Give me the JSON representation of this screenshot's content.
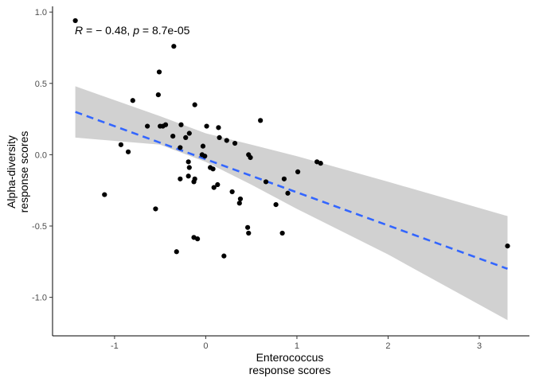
{
  "chart_data": {
    "type": "scatter",
    "title": "",
    "xlabel_lines": [
      "Enterococcus",
      "response scores"
    ],
    "ylabel_lines": [
      "Alpha-diversity",
      "response scores"
    ],
    "xlim": [
      -1.68,
      3.55
    ],
    "ylim": [
      -1.27,
      1.04
    ],
    "xticks": [
      -1,
      0,
      1,
      2,
      3
    ],
    "xtick_labels": [
      "-1",
      "0",
      "1",
      "2",
      "3"
    ],
    "yticks": [
      1.0,
      0.5,
      0.0,
      -0.5,
      -1.0
    ],
    "ytick_labels": [
      "1.0",
      "0.5",
      "0.0",
      "-0.5",
      "-1.0"
    ],
    "grid": false,
    "annotation": {
      "r_symbol": "R",
      "r_text": " = − 0.48, ",
      "p_symbol": "p",
      "p_text": " = 8.7e-05"
    },
    "points": [
      {
        "x": -1.43,
        "y": 0.94
      },
      {
        "x": -0.35,
        "y": 0.76
      },
      {
        "x": -0.51,
        "y": 0.58
      },
      {
        "x": -0.52,
        "y": 0.42
      },
      {
        "x": -0.8,
        "y": 0.38
      },
      {
        "x": -0.12,
        "y": 0.35
      },
      {
        "x": 0.6,
        "y": 0.24
      },
      {
        "x": -0.44,
        "y": 0.21
      },
      {
        "x": -0.47,
        "y": 0.2
      },
      {
        "x": -0.5,
        "y": 0.2
      },
      {
        "x": -0.64,
        "y": 0.2
      },
      {
        "x": -0.27,
        "y": 0.21
      },
      {
        "x": 0.01,
        "y": 0.2
      },
      {
        "x": 0.14,
        "y": 0.19
      },
      {
        "x": -0.18,
        "y": 0.15
      },
      {
        "x": -0.36,
        "y": 0.13
      },
      {
        "x": 0.15,
        "y": 0.12
      },
      {
        "x": 0.23,
        "y": 0.1
      },
      {
        "x": -0.22,
        "y": 0.12
      },
      {
        "x": 0.32,
        "y": 0.08
      },
      {
        "x": -0.93,
        "y": 0.07
      },
      {
        "x": -0.03,
        "y": 0.06
      },
      {
        "x": -0.28,
        "y": 0.05
      },
      {
        "x": -0.85,
        "y": 0.02
      },
      {
        "x": -0.04,
        "y": 0.0
      },
      {
        "x": -0.01,
        "y": -0.01
      },
      {
        "x": 0.47,
        "y": 0.0
      },
      {
        "x": 0.49,
        "y": -0.02
      },
      {
        "x": -0.19,
        "y": -0.05
      },
      {
        "x": 1.22,
        "y": -0.05
      },
      {
        "x": 1.26,
        "y": -0.06
      },
      {
        "x": 0.05,
        "y": -0.09
      },
      {
        "x": 0.08,
        "y": -0.1
      },
      {
        "x": -0.18,
        "y": -0.09
      },
      {
        "x": 1.01,
        "y": -0.12
      },
      {
        "x": -0.19,
        "y": -0.15
      },
      {
        "x": -0.12,
        "y": -0.17
      },
      {
        "x": -0.28,
        "y": -0.17
      },
      {
        "x": -0.13,
        "y": -0.19
      },
      {
        "x": 0.86,
        "y": -0.17
      },
      {
        "x": 0.66,
        "y": -0.19
      },
      {
        "x": 0.13,
        "y": -0.21
      },
      {
        "x": 0.09,
        "y": -0.23
      },
      {
        "x": 0.29,
        "y": -0.26
      },
      {
        "x": 0.9,
        "y": -0.27
      },
      {
        "x": -1.11,
        "y": -0.28
      },
      {
        "x": 0.38,
        "y": -0.31
      },
      {
        "x": 0.37,
        "y": -0.34
      },
      {
        "x": 0.77,
        "y": -0.35
      },
      {
        "x": -0.55,
        "y": -0.38
      },
      {
        "x": 0.46,
        "y": -0.51
      },
      {
        "x": 0.47,
        "y": -0.55
      },
      {
        "x": 0.84,
        "y": -0.55
      },
      {
        "x": -0.13,
        "y": -0.58
      },
      {
        "x": -0.09,
        "y": -0.59
      },
      {
        "x": -0.32,
        "y": -0.68
      },
      {
        "x": 0.2,
        "y": -0.71
      },
      {
        "x": 3.31,
        "y": -0.64
      }
    ],
    "regression": {
      "method": "lm",
      "x_range": [
        -1.43,
        3.31
      ],
      "y_at_xmin": 0.3,
      "y_at_xmax": -0.8,
      "ci_upper": [
        [
          -1.43,
          0.48
        ],
        [
          -0.5,
          0.27
        ],
        [
          0.0,
          0.15
        ],
        [
          0.5,
          0.07
        ],
        [
          1.0,
          -0.01
        ],
        [
          2.0,
          -0.19
        ],
        [
          3.31,
          -0.43
        ]
      ],
      "ci_lower": [
        [
          -1.43,
          0.12
        ],
        [
          -0.5,
          0.07
        ],
        [
          0.0,
          -0.05
        ],
        [
          0.5,
          -0.21
        ],
        [
          1.0,
          -0.38
        ],
        [
          2.0,
          -0.7
        ],
        [
          3.31,
          -1.16
        ]
      ]
    },
    "colors": {
      "points": "#000000",
      "line": "#3366FF",
      "ribbon": "#999999",
      "axis": "#000000"
    }
  }
}
